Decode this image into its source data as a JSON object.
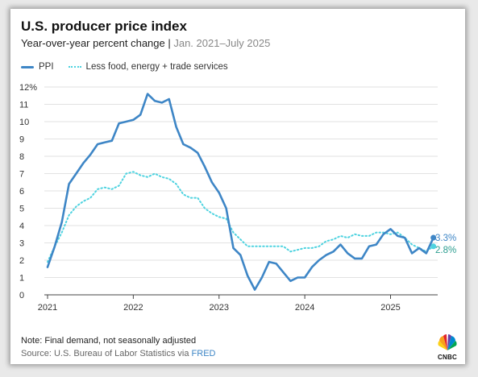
{
  "header": {
    "title": "U.S. producer price index",
    "subtitle_main": "Year-over-year percent change | ",
    "subtitle_range": "Jan. 2021–July 2025"
  },
  "legend": {
    "ppi": "PPI",
    "core": "Less food, energy + trade services"
  },
  "footer": {
    "note": "Note: Final demand, not seasonally adjusted",
    "source_prefix": "Source: U.S. Bureau of Labor Statistics via ",
    "source_link": "FRED"
  },
  "logo": {
    "text": "CNBC"
  },
  "colors": {
    "ppi": "#3e86c6",
    "core": "#4fd3e0",
    "core_label": "#2a9d8f",
    "grid": "#d9d9d9"
  },
  "chart_data": {
    "type": "line",
    "ylim": [
      0,
      12
    ],
    "yticks": [
      "0",
      "1",
      "2",
      "3",
      "4",
      "5",
      "6",
      "7",
      "8",
      "9",
      "10",
      "11",
      "12%"
    ],
    "xticks": [
      "2021",
      "2022",
      "2023",
      "2024",
      "2025"
    ],
    "grid": "horizontal",
    "end_labels": {
      "ppi": "3.3%",
      "core": "2.8%"
    },
    "series": [
      {
        "name": "PPI",
        "x": [
          "2021-01",
          "2021-02",
          "2021-03",
          "2021-04",
          "2021-05",
          "2021-06",
          "2021-07",
          "2021-08",
          "2021-09",
          "2021-10",
          "2021-11",
          "2021-12",
          "2022-01",
          "2022-02",
          "2022-03",
          "2022-04",
          "2022-05",
          "2022-06",
          "2022-07",
          "2022-08",
          "2022-09",
          "2022-10",
          "2022-11",
          "2022-12",
          "2023-01",
          "2023-02",
          "2023-03",
          "2023-04",
          "2023-05",
          "2023-06",
          "2023-07",
          "2023-08",
          "2023-09",
          "2023-10",
          "2023-11",
          "2023-12",
          "2024-01",
          "2024-02",
          "2024-03",
          "2024-04",
          "2024-05",
          "2024-06",
          "2024-07",
          "2024-08",
          "2024-09",
          "2024-10",
          "2024-11",
          "2024-12",
          "2025-01",
          "2025-02",
          "2025-03",
          "2025-04",
          "2025-05",
          "2025-06",
          "2025-07"
        ],
        "values": [
          1.6,
          2.8,
          4.2,
          6.4,
          7.0,
          7.6,
          8.1,
          8.7,
          8.8,
          8.9,
          9.9,
          10.0,
          10.1,
          10.4,
          11.6,
          11.2,
          11.1,
          11.3,
          9.7,
          8.7,
          8.5,
          8.2,
          7.4,
          6.5,
          5.9,
          5.0,
          2.7,
          2.3,
          1.1,
          0.3,
          1.0,
          1.9,
          1.8,
          1.3,
          0.8,
          1.0,
          1.0,
          1.6,
          2.0,
          2.3,
          2.5,
          2.9,
          2.4,
          2.1,
          2.1,
          2.8,
          2.9,
          3.5,
          3.8,
          3.4,
          3.3,
          2.4,
          2.7,
          2.4,
          3.3
        ]
      },
      {
        "name": "Less food, energy + trade services",
        "x": [
          "2021-01",
          "2021-02",
          "2021-03",
          "2021-04",
          "2021-05",
          "2021-06",
          "2021-07",
          "2021-08",
          "2021-09",
          "2021-10",
          "2021-11",
          "2021-12",
          "2022-01",
          "2022-02",
          "2022-03",
          "2022-04",
          "2022-05",
          "2022-06",
          "2022-07",
          "2022-08",
          "2022-09",
          "2022-10",
          "2022-11",
          "2022-12",
          "2023-01",
          "2023-02",
          "2023-03",
          "2023-04",
          "2023-05",
          "2023-06",
          "2023-07",
          "2023-08",
          "2023-09",
          "2023-10",
          "2023-11",
          "2023-12",
          "2024-01",
          "2024-02",
          "2024-03",
          "2024-04",
          "2024-05",
          "2024-06",
          "2024-07",
          "2024-08",
          "2024-09",
          "2024-10",
          "2024-11",
          "2024-12",
          "2025-01",
          "2025-02",
          "2025-03",
          "2025-04",
          "2025-05",
          "2025-06",
          "2025-07"
        ],
        "values": [
          1.9,
          2.8,
          3.6,
          4.6,
          5.1,
          5.4,
          5.6,
          6.1,
          6.2,
          6.1,
          6.3,
          7.0,
          7.1,
          6.9,
          6.8,
          7.0,
          6.8,
          6.7,
          6.4,
          5.8,
          5.6,
          5.6,
          5.0,
          4.7,
          4.5,
          4.4,
          3.6,
          3.2,
          2.8,
          2.8,
          2.8,
          2.8,
          2.8,
          2.8,
          2.5,
          2.6,
          2.7,
          2.7,
          2.8,
          3.1,
          3.2,
          3.4,
          3.3,
          3.5,
          3.4,
          3.4,
          3.6,
          3.6,
          3.5,
          3.6,
          3.3,
          2.9,
          2.7,
          2.5,
          2.8
        ]
      }
    ]
  }
}
